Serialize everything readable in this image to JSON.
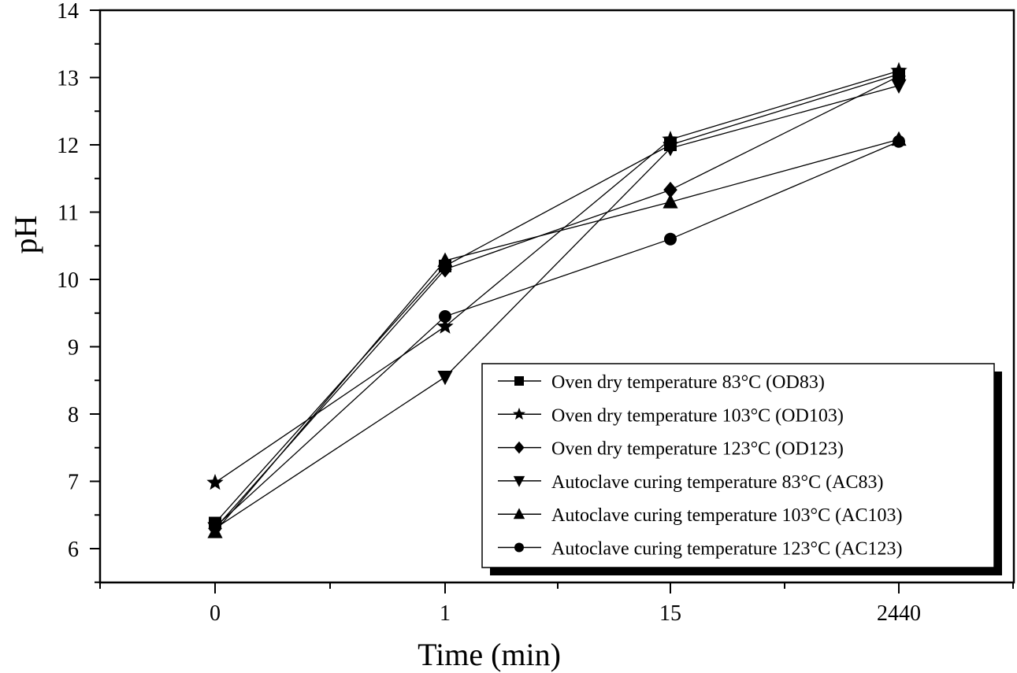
{
  "chart_data": {
    "type": "line",
    "title": "",
    "xlabel": "Time (min)",
    "ylabel": "pH",
    "x": [
      "0",
      "1",
      "15",
      "2440"
    ],
    "x_axis_type": "categorical",
    "ylim": [
      5.5,
      14
    ],
    "yticks": [
      6,
      7,
      8,
      9,
      10,
      11,
      12,
      13,
      14
    ],
    "grid": false,
    "legend_position": "bottom-right",
    "series": [
      {
        "name": "Oven dry temperature 83°C (OD83)",
        "marker": "square",
        "values": [
          6.38,
          10.2,
          12.0,
          13.05
        ]
      },
      {
        "name": "Oven dry temperature 103°C (OD103)",
        "marker": "star",
        "values": [
          6.98,
          9.3,
          12.08,
          13.1
        ]
      },
      {
        "name": "Oven dry temperature 123°C (OD123)",
        "marker": "diamond",
        "values": [
          6.3,
          10.15,
          11.33,
          13.02
        ]
      },
      {
        "name": "Autoclave curing temperature 83°C (AC83)",
        "marker": "triangle-down",
        "values": [
          6.3,
          8.55,
          11.95,
          12.88
        ]
      },
      {
        "name": "Autoclave curing temperature 103°C (AC103)",
        "marker": "triangle-up",
        "values": [
          6.25,
          10.28,
          11.15,
          12.08
        ]
      },
      {
        "name": "Autoclave curing temperature 123°C (AC123)",
        "marker": "circle",
        "values": [
          6.32,
          9.45,
          10.6,
          12.05
        ]
      }
    ],
    "colors": {
      "line": "#000000",
      "marker": "#000000",
      "background": "#ffffff"
    }
  }
}
